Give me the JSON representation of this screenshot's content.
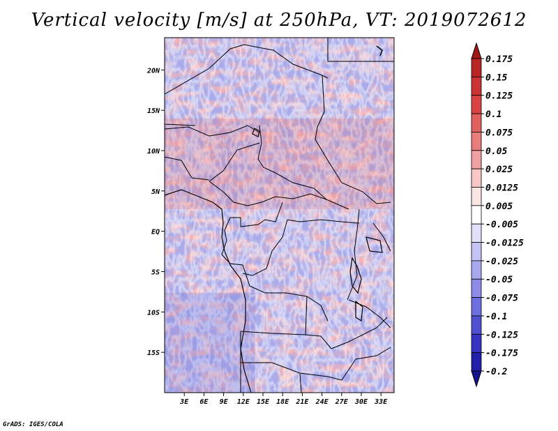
{
  "title": "Vertical velocity [m/s] at 250hPa, VT: 2019072612",
  "credit": "GrADS: IGES/COLA",
  "map": {
    "variable": "Vertical velocity",
    "units": "m/s",
    "level": "250hPa",
    "valid_time": "2019072612",
    "region": "Central Africa",
    "lon_range": [
      0,
      35
    ],
    "lat_range": [
      -20,
      24
    ],
    "lon_ticks": [
      "3E",
      "6E",
      "9E",
      "12E",
      "15E",
      "18E",
      "21E",
      "24E",
      "27E",
      "30E",
      "33E"
    ],
    "lon_tick_values": [
      3,
      6,
      9,
      12,
      15,
      18,
      21,
      24,
      27,
      30,
      33
    ],
    "lat_ticks": [
      "20N",
      "15N",
      "10N",
      "5N",
      "EQ",
      "5S",
      "10S",
      "15S"
    ],
    "lat_tick_values": [
      20,
      15,
      10,
      5,
      0,
      -5,
      -10,
      -15
    ]
  },
  "colorbar": {
    "labels": [
      "0.175",
      "0.15",
      "0.125",
      "0.1",
      "0.075",
      "0.05",
      "0.025",
      "0.0125",
      "0.005",
      "-0.005",
      "-0.0125",
      "-0.025",
      "-0.05",
      "-0.075",
      "-0.1",
      "-0.125",
      "-0.175",
      "-0.2"
    ],
    "colors": [
      "#a01818",
      "#b82525",
      "#c83333",
      "#d84444",
      "#e06060",
      "#e87c7c",
      "#f0a0a0",
      "#f7c6c6",
      "#fbe4e4",
      "#ffffff",
      "#e0e0f8",
      "#c4c4f4",
      "#a8a8ee",
      "#8c8ce6",
      "#6e6ede",
      "#5050d0",
      "#3434c0",
      "#2020a8",
      "#141490"
    ]
  }
}
